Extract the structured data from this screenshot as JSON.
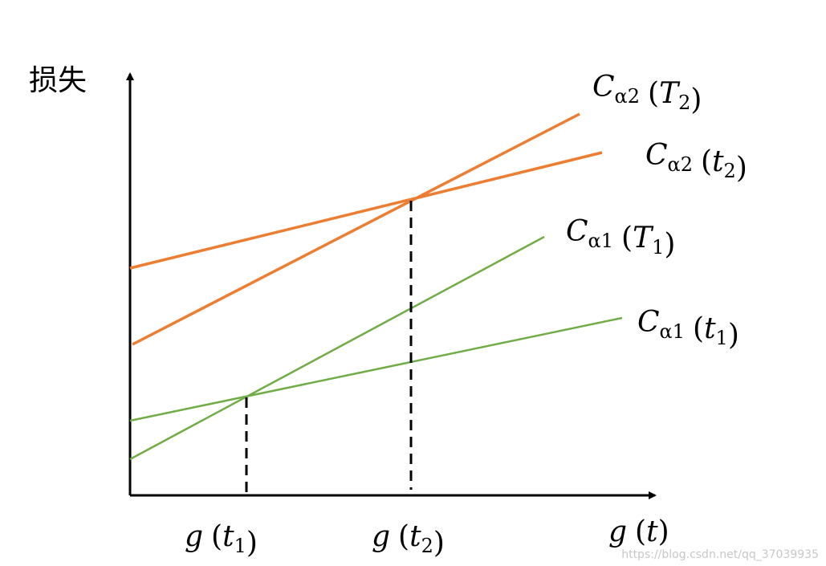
{
  "y_axis_label": "损失",
  "curve_labels": [
    {
      "c": "C",
      "c_sub": "α2",
      "open": "(",
      "arg": "T",
      "arg_sub": "2",
      "close": ")"
    },
    {
      "c": "C",
      "c_sub": "α2",
      "open": "(",
      "arg": "t",
      "arg_sub": "2",
      "close": ")"
    },
    {
      "c": "C",
      "c_sub": "α1",
      "open": "(",
      "arg": "T",
      "arg_sub": "1",
      "close": ")"
    },
    {
      "c": "C",
      "c_sub": "α1",
      "open": "(",
      "arg": "t",
      "arg_sub": "1",
      "close": ")"
    }
  ],
  "x_labels": [
    {
      "g": "g",
      "open": "(",
      "arg": "t",
      "arg_sub": "1",
      "close": ")"
    },
    {
      "g": "g",
      "open": "(",
      "arg": "t",
      "arg_sub": "2",
      "close": ")"
    },
    {
      "g": "g",
      "open": "(",
      "arg": "t",
      "close": ")"
    }
  ],
  "watermark": "https://blog.csdn.net/qq_37039935"
}
